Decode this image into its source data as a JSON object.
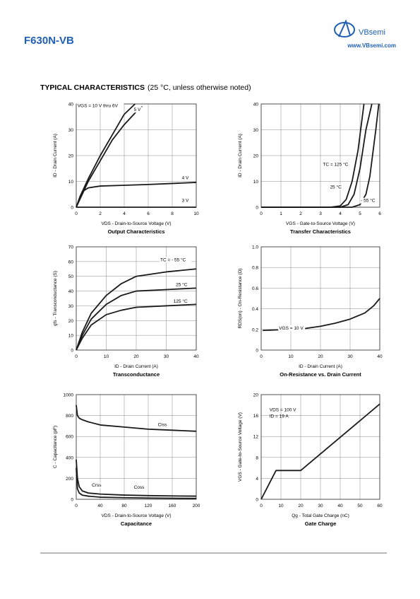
{
  "header": {
    "part": "F630N-VB",
    "brand": "VBsemi",
    "url": "www.VBsemi.com"
  },
  "section": {
    "title": "TYPICAL CHARACTERISTICS",
    "note": "(25 °C, unless otherwise noted)"
  },
  "chart_data": [
    {
      "type": "line",
      "title": "Output Characteristics",
      "xlabel": "VDS - Drain-to-Source Voltage (V)",
      "ylabel": "ID - Drain Current (A)",
      "xlim": [
        0,
        10
      ],
      "ylim": [
        0,
        40
      ],
      "xticks": [
        0,
        2,
        4,
        6,
        8,
        10
      ],
      "yticks": [
        0,
        10,
        20,
        30,
        40
      ],
      "grid": true,
      "series": [
        {
          "name": "VGS = 10 V thru 6V",
          "color": "#1a1a1a",
          "x": [
            0,
            0.5,
            1,
            2,
            3,
            4,
            4.9
          ],
          "values": [
            0,
            6,
            11,
            20,
            28,
            36,
            40
          ]
        },
        {
          "name": "5 V",
          "color": "#1a1a1a",
          "x": [
            0,
            0.5,
            1,
            2,
            3,
            4,
            5,
            5.5
          ],
          "values": [
            0,
            5,
            10,
            18,
            26,
            32,
            37,
            39
          ]
        },
        {
          "name": "4 V",
          "color": "#1a1a1a",
          "x": [
            0,
            0.3,
            0.5,
            1,
            2,
            4,
            6,
            8,
            10
          ],
          "values": [
            0,
            4,
            6,
            7.5,
            8.2,
            8.5,
            8.8,
            9.2,
            9.6
          ]
        },
        {
          "name": "3 V",
          "color": "#1a1a1a",
          "x": [
            0,
            10
          ],
          "values": [
            0,
            0
          ]
        }
      ]
    },
    {
      "type": "line",
      "title": "Transfer Characteristics",
      "xlabel": "VGS - Gate-to-Source Voltage (V)",
      "ylabel": "ID - Drain Current (A)",
      "xlim": [
        0,
        6
      ],
      "ylim": [
        0,
        40
      ],
      "xticks": [
        0,
        1,
        2,
        3,
        4,
        5,
        6
      ],
      "yticks": [
        0,
        10,
        20,
        30,
        40
      ],
      "grid": true,
      "series": [
        {
          "name": "TC = 125 °C",
          "color": "#1a1a1a",
          "x": [
            0,
            3.5,
            4,
            4.3,
            4.6,
            4.9,
            5.2
          ],
          "values": [
            0,
            0,
            0.5,
            3,
            10,
            22,
            40
          ]
        },
        {
          "name": "25 °C",
          "color": "#1a1a1a",
          "x": [
            0,
            4,
            4.4,
            4.7,
            5,
            5.3,
            5.6
          ],
          "values": [
            0,
            0,
            1,
            5,
            15,
            30,
            40
          ]
        },
        {
          "name": "- 55 °C",
          "color": "#1a1a1a",
          "x": [
            0,
            4.6,
            5,
            5.3,
            5.5,
            5.8,
            5.95
          ],
          "values": [
            0,
            0,
            1,
            5,
            12,
            30,
            40
          ]
        }
      ]
    },
    {
      "type": "line",
      "title": "Transconductance",
      "xlabel": "ID - Drain Current (A)",
      "ylabel": "gfs - Transconductance (S)",
      "xlim": [
        0,
        40
      ],
      "ylim": [
        0,
        70
      ],
      "xticks": [
        0,
        10,
        20,
        30,
        40
      ],
      "yticks": [
        0,
        10,
        20,
        30,
        40,
        50,
        60,
        70
      ],
      "grid": true,
      "series": [
        {
          "name": "TC = - 55 °C",
          "color": "#1a1a1a",
          "x": [
            0,
            2,
            5,
            10,
            15,
            20,
            30,
            40
          ],
          "values": [
            0,
            12,
            25,
            37,
            45,
            50,
            53,
            55
          ]
        },
        {
          "name": "25 °C",
          "color": "#1a1a1a",
          "x": [
            0,
            2,
            5,
            10,
            15,
            20,
            30,
            40
          ],
          "values": [
            0,
            10,
            21,
            31,
            37,
            40,
            41,
            42
          ]
        },
        {
          "name": "125 °C",
          "color": "#1a1a1a",
          "x": [
            0,
            2,
            5,
            10,
            15,
            20,
            30,
            40
          ],
          "values": [
            0,
            8,
            17,
            24,
            27,
            29,
            30,
            31
          ]
        }
      ]
    },
    {
      "type": "line",
      "title": "On-Resistance vs. Drain Current",
      "xlabel": "ID - Drain Current (A)",
      "ylabel": "RDS(on) - On-Resistance (Ω)",
      "xlim": [
        0,
        40
      ],
      "ylim": [
        0,
        1
      ],
      "xticks": [
        0,
        10,
        20,
        30,
        40
      ],
      "yticks": [
        0,
        0.2,
        0.4,
        0.6,
        0.8,
        {
          "value": 1,
          "label": "1.0"
        }
      ],
      "grid": true,
      "series": [
        {
          "name": "VGS = 10 V",
          "color": "#1a1a1a",
          "x": [
            0.5,
            5,
            10,
            15,
            20,
            25,
            30,
            35,
            38,
            40
          ],
          "values": [
            0.19,
            0.195,
            0.2,
            0.21,
            0.23,
            0.26,
            0.3,
            0.36,
            0.43,
            0.5
          ]
        }
      ]
    },
    {
      "type": "line",
      "title": "Capacitance",
      "xlabel": "VDS - Drain-to-Source Voltage (V)",
      "ylabel": "C - Capacitance (pF)",
      "xlim": [
        0,
        200
      ],
      "ylim": [
        0,
        1000
      ],
      "xticks": [
        0,
        40,
        80,
        120,
        160,
        200
      ],
      "yticks": [
        0,
        200,
        400,
        600,
        800,
        1000
      ],
      "grid": true,
      "series": [
        {
          "name": "Ciss",
          "color": "#1a1a1a",
          "x": [
            0,
            2,
            5,
            10,
            20,
            40,
            80,
            120,
            160,
            200
          ],
          "values": [
            900,
            800,
            775,
            760,
            740,
            710,
            690,
            670,
            660,
            650
          ]
        },
        {
          "name": "Coss",
          "color": "#1a1a1a",
          "x": [
            0,
            2,
            5,
            10,
            20,
            40,
            80,
            120,
            160,
            200
          ],
          "values": [
            380,
            200,
            120,
            80,
            60,
            50,
            40,
            35,
            32,
            30
          ]
        },
        {
          "name": "Crss",
          "color": "#1a1a1a",
          "x": [
            0,
            2,
            5,
            10,
            20,
            40,
            80,
            120,
            160,
            200
          ],
          "values": [
            300,
            100,
            60,
            40,
            30,
            20,
            15,
            12,
            10,
            8
          ]
        }
      ]
    },
    {
      "type": "line",
      "title": "Gate Charge",
      "xlabel": "Qg - Total Gate Charge (nC)",
      "ylabel": "VGS - Gate-to-Source Voltage (V)",
      "xlim": [
        0,
        60
      ],
      "ylim": [
        0,
        20
      ],
      "xticks": [
        0,
        10,
        20,
        30,
        40,
        50,
        60
      ],
      "yticks": [
        0,
        4,
        8,
        12,
        16,
        20
      ],
      "grid": true,
      "annotations": [
        "VDS = 100 V",
        "ID = 19 A"
      ],
      "series": [
        {
          "name": "",
          "color": "#1a1a1a",
          "x": [
            0,
            7.5,
            20,
            60
          ],
          "values": [
            0,
            5.5,
            5.5,
            18.2
          ]
        }
      ]
    }
  ]
}
